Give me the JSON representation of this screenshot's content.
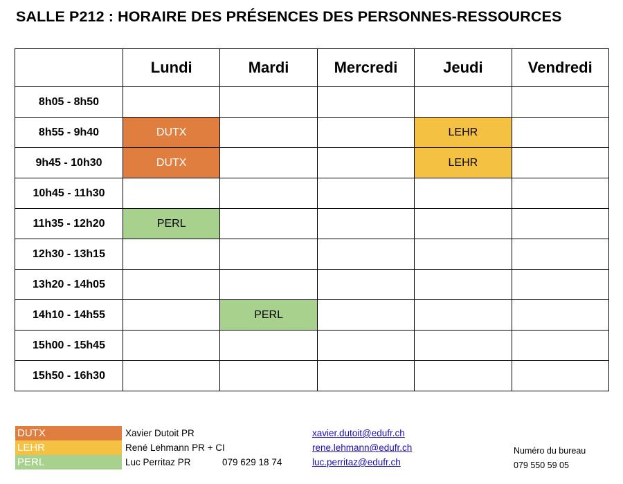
{
  "title": "SALLE P212 : HORAIRE DES PRÉSENCES DES PERSONNES-RESSOURCES",
  "colors": {
    "DUTX": "#E07E40",
    "LEHR": "#F5C142",
    "PERL": "#A9D18E"
  },
  "days": [
    "Lundi",
    "Mardi",
    "Mercredi",
    "Jeudi",
    "Vendredi"
  ],
  "rows": [
    {
      "time": "8h05 - 8h50",
      "cells": [
        "",
        "",
        "",
        "",
        ""
      ]
    },
    {
      "time": "8h55 - 9h40",
      "cells": [
        "DUTX",
        "",
        "",
        "LEHR",
        ""
      ]
    },
    {
      "time": "9h45 - 10h30",
      "cells": [
        "DUTX",
        "",
        "",
        "LEHR",
        ""
      ]
    },
    {
      "time": "10h45 - 11h30",
      "cells": [
        "",
        "",
        "",
        "",
        ""
      ]
    },
    {
      "time": "11h35 - 12h20",
      "cells": [
        "PERL",
        "",
        "",
        "",
        ""
      ]
    },
    {
      "time": "12h30 - 13h15",
      "cells": [
        "",
        "",
        "",
        "",
        ""
      ]
    },
    {
      "time": "13h20 - 14h05",
      "cells": [
        "",
        "",
        "",
        "",
        ""
      ]
    },
    {
      "time": "14h10 - 14h55",
      "cells": [
        "",
        "PERL",
        "",
        "",
        ""
      ]
    },
    {
      "time": "15h00 - 15h45",
      "cells": [
        "",
        "",
        "",
        "",
        ""
      ]
    },
    {
      "time": "15h50 - 16h30",
      "cells": [
        "",
        "",
        "",
        "",
        ""
      ]
    }
  ],
  "legend": [
    {
      "code": "DUTX",
      "name": "Xavier Dutoit PR",
      "phone": "",
      "email": "xavier.dutoit@edufr.ch"
    },
    {
      "code": "LEHR",
      "name": "René Lehmann PR + CI",
      "phone": "",
      "email": "rene.lehmann@edufr.ch"
    },
    {
      "code": "PERL",
      "name": "Luc Perritaz PR",
      "phone": "079 629 18 74",
      "email": "luc.perritaz@edufr.ch"
    }
  ],
  "office": {
    "label": "Numéro du bureau",
    "phone": "079 550 59 05"
  }
}
